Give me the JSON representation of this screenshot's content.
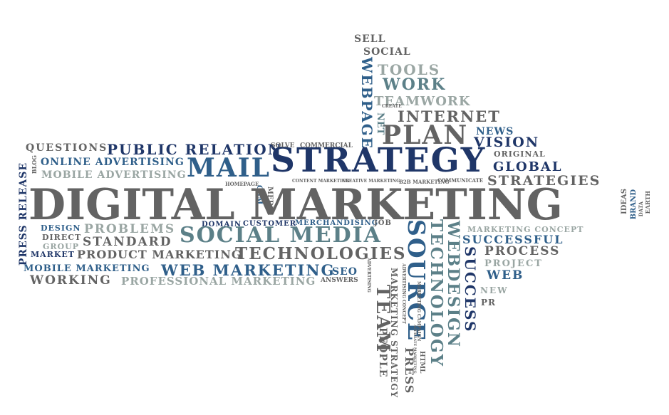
{
  "colors": {
    "gray": "#636363",
    "navy": "#1f3668",
    "blue": "#2f5f8a",
    "light": "#9aa6a3",
    "teal": "#5c8088",
    "background": "#ffffff"
  },
  "words": {
    "digital_marketing": "DIGITAL MARKETING",
    "strategy": "STRATEGY",
    "social_media": "SOCIAL MEDIA",
    "mail": "MAIL",
    "plan": "PLAN",
    "internet": "INTERNET",
    "teamwork": "TEAMWORK",
    "work": "WORK",
    "tools": "TOOLS",
    "social": "SOCIAL",
    "sell": "SELL",
    "webpage": "WEBPAGE",
    "net": "NET",
    "news": "NEWS",
    "vision": "VISION",
    "original": "ORIGINAL",
    "global": "GLOBAL",
    "strategies": "STRATEGIES",
    "public_relation": "PUBLIC RELATION",
    "questions": "QUESTIONS",
    "online_advertising": "ONLINE ADVERTISING",
    "mobile_advertising": "MOBILE ADVERTISING",
    "press_release": "PRESS RELEASE",
    "blog": "BLOG",
    "solve": "SOLVE",
    "commercial": "COMMERCIAL",
    "homepage": "HOMEPAGE",
    "crm": "CRM",
    "media": "MEDIA",
    "content_marketing": "CONTENT MARKETING",
    "creative_marketing": "CREATIVE MARKETING",
    "b2b_marketing": "B2B MARKETING",
    "communicate": "COMMUNICATE",
    "create": "CREATE",
    "design": "DESIGN",
    "direct": "DIRECT",
    "group": "GROUP",
    "market": "MARKET",
    "problems": "PROBLEMS",
    "standard": "STANDARD",
    "product_marketing": "PRODUCT MARKETING",
    "domain": "DOMAIN",
    "customer": "CUSTOMER",
    "merchandising": "MERCHANDISING",
    "job": "JOB",
    "technologies": "TECHNOLOGIES",
    "mobile_marketing": "MOBILE MARKETING",
    "web_marketing": "WEB MARKETING",
    "seo": "SEO",
    "working": "WORKING",
    "professional_marketing": "PROFESSIONAL MARKETING",
    "answers": "ANSWERS",
    "advertising": "ADVERTISING",
    "team": "TEAM",
    "people": "PEOPLE",
    "marketing_strategy": "MARKETING STRATEGY",
    "advertising_concept": "ADVERTISING CONCEPT",
    "source": "SOURCE",
    "press": "PRESS",
    "marketing_campaign": "MARKETING CAMPAIGN",
    "html": "HTML",
    "affiliate_marketing": "AFFILIATE MARKETING",
    "technology": "TECHNOLOGY",
    "webdesign": "WEBDESIGN",
    "success": "SUCCESS",
    "marketing_concept": "MARKETING CONCEPT",
    "successful": "SUCCESSFUL",
    "process": "PROCESS",
    "project": "PROJECT",
    "web": "WEB",
    "new": "NEW",
    "pr": "PR",
    "ideas": "IDEAS",
    "brand": "BRAND",
    "data": "DATA",
    "earth": "EARTH"
  }
}
